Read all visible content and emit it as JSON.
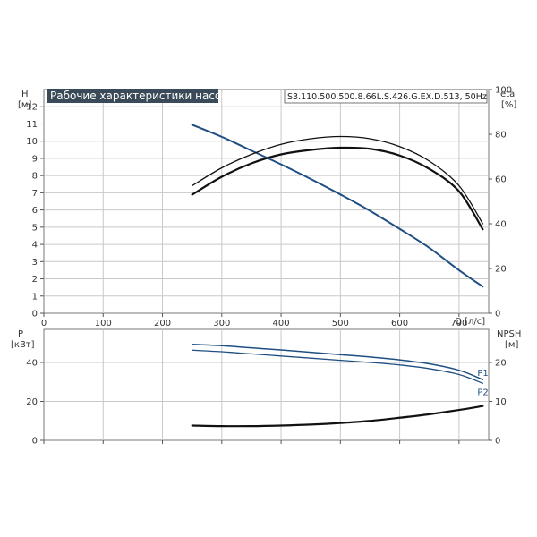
{
  "title": "Рабочие характеристики насоса",
  "model": "S3.110.500.500.8.66L.S.426.G.EX.D.513, 50Hz",
  "colors": {
    "head": "#1f4f82",
    "black": "#111111",
    "grid": "#c8c8c8",
    "title_bg": "#3a4a58"
  },
  "chart_data": [
    {
      "type": "line",
      "panel": "top",
      "xlabel": "Q [л/с]",
      "ylabel_left": [
        "H",
        "[м]"
      ],
      "ylabel_right": [
        "eta",
        "[%]"
      ],
      "xlim": [
        0,
        750
      ],
      "ylim_left": [
        0,
        13
      ],
      "ylim_right": [
        0,
        100
      ],
      "x_ticks": [
        0,
        100,
        200,
        300,
        400,
        500,
        600,
        700
      ],
      "y_ticks_left": [
        0,
        1,
        2,
        3,
        4,
        5,
        6,
        7,
        8,
        9,
        10,
        11,
        12
      ],
      "y_ticks_right": [
        0,
        20,
        40,
        60,
        80,
        100
      ],
      "grid": true,
      "series": [
        {
          "key": "H",
          "axis": "left",
          "color": "#1f4f82",
          "width": 2,
          "x": [
            250,
            300,
            350,
            400,
            450,
            500,
            550,
            600,
            650,
            700,
            740
          ],
          "y": [
            10.95,
            10.25,
            9.45,
            8.65,
            7.8,
            6.9,
            5.95,
            4.9,
            3.8,
            2.5,
            1.55
          ]
        },
        {
          "key": "eta1",
          "axis": "right",
          "color": "#111111",
          "width": 1.3,
          "x": [
            250,
            300,
            350,
            400,
            450,
            500,
            550,
            600,
            650,
            700,
            740
          ],
          "y": [
            57,
            65,
            71,
            75.5,
            78,
            79,
            78,
            74.5,
            68,
            57,
            40
          ]
        },
        {
          "key": "eta2",
          "axis": "right",
          "color": "#111111",
          "width": 2.2,
          "x": [
            250,
            300,
            350,
            400,
            450,
            500,
            550,
            600,
            650,
            700,
            740
          ],
          "y": [
            53,
            61,
            67,
            71,
            73,
            74,
            73.5,
            70.5,
            64.5,
            54.5,
            37.5
          ]
        }
      ]
    },
    {
      "type": "line",
      "panel": "bottom",
      "ylabel_left": [
        "P",
        "[кВт]"
      ],
      "ylabel_right": [
        "NPSH",
        "[м]"
      ],
      "xlim": [
        0,
        750
      ],
      "ylim_left": [
        0,
        57
      ],
      "ylim_right": [
        0,
        28.5
      ],
      "y_ticks_left": [
        0,
        20,
        40
      ],
      "y_ticks_right": [
        0,
        10,
        20
      ],
      "grid": true,
      "series": [
        {
          "key": "P1",
          "name": "P1",
          "axis": "left",
          "color": "#1f4f82",
          "width": 1.5,
          "x": [
            250,
            300,
            350,
            400,
            450,
            500,
            550,
            600,
            650,
            700,
            740
          ],
          "y": [
            49.3,
            48.6,
            47.5,
            46.4,
            45.2,
            44.0,
            42.8,
            41.3,
            39.3,
            36.0,
            31.2
          ]
        },
        {
          "key": "P2",
          "name": "P2",
          "axis": "left",
          "color": "#1f4f82",
          "width": 1.3,
          "x": [
            250,
            300,
            350,
            400,
            450,
            500,
            550,
            600,
            650,
            700,
            740
          ],
          "y": [
            46.3,
            45.5,
            44.4,
            43.3,
            42.2,
            41.1,
            40.0,
            38.7,
            36.8,
            33.8,
            29.3
          ]
        },
        {
          "key": "NPSH",
          "axis": "right",
          "color": "#111111",
          "width": 2.2,
          "x": [
            250,
            300,
            350,
            400,
            450,
            500,
            550,
            600,
            650,
            700,
            740
          ],
          "y": [
            3.8,
            3.65,
            3.65,
            3.8,
            4.05,
            4.45,
            5.0,
            5.8,
            6.7,
            7.8,
            8.8
          ]
        }
      ]
    }
  ]
}
